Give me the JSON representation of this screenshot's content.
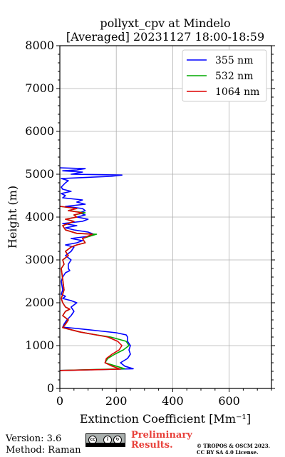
{
  "chart_data": {
    "type": "line",
    "title": "pollyxt_cpv at Mindelo",
    "subtitle": "[Averaged] 20231127 18:00-18:59",
    "xlabel": "Extinction Coefficient [Mm⁻¹]",
    "ylabel": "Height (m)",
    "xlim": [
      0,
      750
    ],
    "ylim": [
      0,
      8000
    ],
    "xticks": [
      0,
      200,
      400,
      600
    ],
    "yticks": [
      0,
      1000,
      2000,
      3000,
      4000,
      5000,
      6000,
      7000,
      8000
    ],
    "grid": true,
    "legend_position": "top-right",
    "series": [
      {
        "name": "355 nm",
        "color": "#0000ff",
        "points": [
          [
            0,
            420
          ],
          [
            260,
            460
          ],
          [
            230,
            520
          ],
          [
            215,
            600
          ],
          [
            240,
            700
          ],
          [
            250,
            800
          ],
          [
            245,
            900
          ],
          [
            250,
            1000
          ],
          [
            240,
            1100
          ],
          [
            240,
            1200
          ],
          [
            235,
            1250
          ],
          [
            200,
            1300
          ],
          [
            130,
            1350
          ],
          [
            60,
            1400
          ],
          [
            10,
            1430
          ],
          [
            15,
            1500
          ],
          [
            25,
            1600
          ],
          [
            40,
            1700
          ],
          [
            50,
            1800
          ],
          [
            40,
            1900
          ],
          [
            50,
            1950
          ],
          [
            60,
            2000
          ],
          [
            40,
            2050
          ],
          [
            10,
            2100
          ],
          [
            20,
            2150
          ],
          [
            5,
            2200
          ],
          [
            10,
            2300
          ],
          [
            5,
            2500
          ],
          [
            10,
            2600
          ],
          [
            20,
            2700
          ],
          [
            35,
            2750
          ],
          [
            30,
            2800
          ],
          [
            30,
            2900
          ],
          [
            40,
            3000
          ],
          [
            20,
            3100
          ],
          [
            40,
            3200
          ],
          [
            50,
            3300
          ],
          [
            20,
            3350
          ],
          [
            60,
            3400
          ],
          [
            80,
            3450
          ],
          [
            40,
            3500
          ],
          [
            100,
            3550
          ],
          [
            120,
            3600
          ],
          [
            100,
            3650
          ],
          [
            50,
            3700
          ],
          [
            20,
            3750
          ],
          [
            60,
            3800
          ],
          [
            10,
            3850
          ],
          [
            80,
            3900
          ],
          [
            100,
            3950
          ],
          [
            60,
            4000
          ],
          [
            90,
            4050
          ],
          [
            70,
            4100
          ],
          [
            90,
            4150
          ],
          [
            80,
            4200
          ],
          [
            20,
            4250
          ],
          [
            90,
            4300
          ],
          [
            60,
            4350
          ],
          [
            80,
            4400
          ],
          [
            10,
            4450
          ],
          [
            20,
            4500
          ],
          [
            5,
            4550
          ],
          [
            40,
            4600
          ],
          [
            10,
            4650
          ],
          [
            5,
            4700
          ],
          [
            20,
            4800
          ],
          [
            30,
            4850
          ],
          [
            5,
            4900
          ],
          [
            180,
            4950
          ],
          [
            220,
            4980
          ],
          [
            40,
            5000
          ],
          [
            80,
            5050
          ],
          [
            10,
            5080
          ],
          [
            60,
            5100
          ],
          [
            90,
            5130
          ],
          [
            0,
            5150
          ]
        ]
      },
      {
        "name": "532 nm",
        "color": "#00aa00",
        "points": [
          [
            0,
            420
          ],
          [
            230,
            460
          ],
          [
            200,
            520
          ],
          [
            160,
            600
          ],
          [
            170,
            700
          ],
          [
            195,
            800
          ],
          [
            225,
            900
          ],
          [
            245,
            1000
          ],
          [
            235,
            1100
          ],
          [
            180,
            1200
          ],
          [
            120,
            1260
          ],
          [
            70,
            1320
          ],
          [
            10,
            1420
          ],
          [
            20,
            1500
          ],
          [
            30,
            1600
          ],
          [
            10,
            1700
          ],
          [
            20,
            1800
          ],
          [
            35,
            1850
          ],
          [
            20,
            1900
          ],
          [
            10,
            2000
          ],
          [
            5,
            2100
          ],
          [
            10,
            2200
          ],
          [
            15,
            2300
          ],
          [
            5,
            2800
          ],
          [
            15,
            2900
          ],
          [
            10,
            3000
          ],
          [
            30,
            3100
          ],
          [
            20,
            3200
          ],
          [
            40,
            3300
          ],
          [
            60,
            3350
          ],
          [
            90,
            3400
          ],
          [
            80,
            3500
          ],
          [
            130,
            3600
          ],
          [
            60,
            3620
          ],
          [
            20,
            3700
          ],
          [
            10,
            3800
          ],
          [
            30,
            3850
          ],
          [
            50,
            3900
          ],
          [
            20,
            3950
          ],
          [
            60,
            4000
          ],
          [
            50,
            4050
          ],
          [
            90,
            4100
          ],
          [
            30,
            4150
          ],
          [
            60,
            4200
          ],
          [
            0,
            4250
          ]
        ]
      },
      {
        "name": "1064 nm",
        "color": "#dd0000",
        "points": [
          [
            0,
            420
          ],
          [
            215,
            450
          ],
          [
            185,
            520
          ],
          [
            160,
            600
          ],
          [
            165,
            700
          ],
          [
            185,
            800
          ],
          [
            210,
            900
          ],
          [
            220,
            1000
          ],
          [
            205,
            1100
          ],
          [
            170,
            1200
          ],
          [
            120,
            1260
          ],
          [
            70,
            1320
          ],
          [
            10,
            1420
          ],
          [
            20,
            1500
          ],
          [
            30,
            1600
          ],
          [
            10,
            1700
          ],
          [
            20,
            1800
          ],
          [
            35,
            1850
          ],
          [
            20,
            1900
          ],
          [
            10,
            2000
          ],
          [
            5,
            2100
          ],
          [
            10,
            2200
          ],
          [
            15,
            2300
          ],
          [
            5,
            2800
          ],
          [
            15,
            2900
          ],
          [
            10,
            3000
          ],
          [
            30,
            3100
          ],
          [
            20,
            3200
          ],
          [
            40,
            3300
          ],
          [
            60,
            3350
          ],
          [
            90,
            3400
          ],
          [
            80,
            3500
          ],
          [
            115,
            3600
          ],
          [
            60,
            3620
          ],
          [
            20,
            3700
          ],
          [
            10,
            3800
          ],
          [
            30,
            3850
          ],
          [
            50,
            3900
          ],
          [
            20,
            3950
          ],
          [
            60,
            4000
          ],
          [
            50,
            4050
          ],
          [
            80,
            4100
          ],
          [
            30,
            4150
          ],
          [
            60,
            4200
          ],
          [
            0,
            4250
          ]
        ]
      }
    ]
  },
  "footer": {
    "version": "Version: 3.6",
    "method": "Method: Raman",
    "preliminary_line1": "Preliminary",
    "preliminary_line2": "Results.",
    "copyright_line1": "© TROPOS & OSCM 2023.",
    "copyright_line2": "CC BY SA 4.0 License.",
    "license_badge": "cc-by-sa-icon"
  }
}
